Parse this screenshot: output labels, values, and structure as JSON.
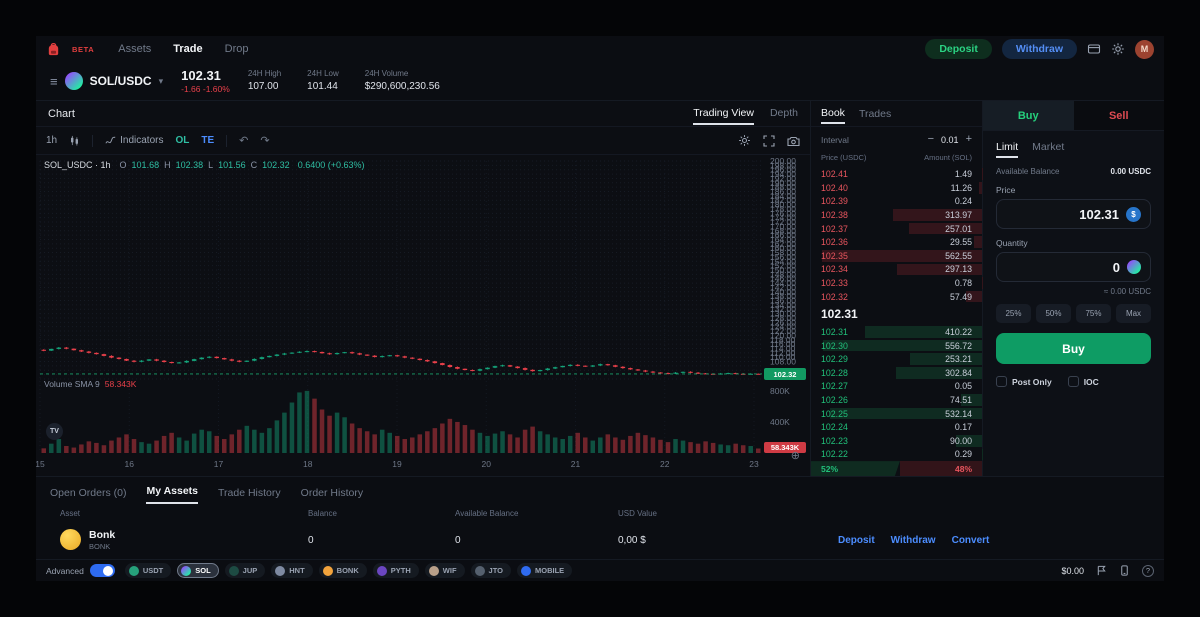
{
  "nav": {
    "beta": "BETA",
    "items": [
      {
        "label": "Assets",
        "active": false
      },
      {
        "label": "Trade",
        "active": true
      },
      {
        "label": "Drop",
        "active": false
      }
    ],
    "deposit": "Deposit",
    "withdraw": "Withdraw",
    "avatar_initial": "M"
  },
  "market": {
    "pair": "SOL/USDC",
    "price": "102.31",
    "change": "-1.66 -1.60%",
    "stats": [
      {
        "label": "24H High",
        "value": "107.00"
      },
      {
        "label": "24H Low",
        "value": "101.44"
      },
      {
        "label": "24H Volume",
        "value": "$290,600,230.56"
      }
    ]
  },
  "chart": {
    "panel_title": "Chart",
    "view_tabs": [
      {
        "label": "Trading View",
        "active": true
      },
      {
        "label": "Depth",
        "active": false
      }
    ],
    "toolbar": {
      "timeframe": "1h",
      "indicators": "Indicators",
      "ol": "OL",
      "te": "TE",
      "undo": "↶",
      "redo": "↷"
    },
    "legend": {
      "title": "SOL_USDC · 1h",
      "o_label": "O",
      "o": "101.68",
      "h_label": "H",
      "h": "102.38",
      "l_label": "L",
      "l": "101.56",
      "c_label": "C",
      "c": "102.32",
      "change": "0.6400 (+0.63%)"
    },
    "volume_legend": {
      "label": "Volume SMA 9",
      "value": "58.343K"
    },
    "watermark": "TV",
    "target_glyph": "⊕",
    "chart_data": {
      "type": "candlestick",
      "symbol": "SOL_USDC",
      "interval": "1h",
      "ylim": [
        100,
        200.001
      ],
      "y_step": 2,
      "x_ticks": [
        "15",
        "16",
        "17",
        "18",
        "19",
        "20",
        "21",
        "22",
        "23"
      ],
      "vol_ticks": [
        {
          "label": "800K",
          "value": 800
        },
        {
          "label": "400K",
          "value": 400
        }
      ],
      "vol_max": 850,
      "last_price": 102.32,
      "last_price_label": "102.32",
      "last_volume_label": "58.343K",
      "closes": [
        113.0,
        113.8,
        114.4,
        113.9,
        113.2,
        112.6,
        112.0,
        111.4,
        110.6,
        109.8,
        109.2,
        108.4,
        107.9,
        108.4,
        109.0,
        108.4,
        107.8,
        107.3,
        107.6,
        108.3,
        109.1,
        109.8,
        110.2,
        109.6,
        109.0,
        108.4,
        107.9,
        108.4,
        109.2,
        110.0,
        110.6,
        111.2,
        111.7,
        112.1,
        112.5,
        112.8,
        112.4,
        111.8,
        111.4,
        111.9,
        112.3,
        111.8,
        111.2,
        110.7,
        110.1,
        110.5,
        110.9,
        110.4,
        109.8,
        109.3,
        108.7,
        108.1,
        107.3,
        106.4,
        105.5,
        104.7,
        104.1,
        103.8,
        104.5,
        105.2,
        105.9,
        106.3,
        105.7,
        105.0,
        104.2,
        103.6,
        104.1,
        104.8,
        105.4,
        106.0,
        106.5,
        106.1,
        105.7,
        106.2,
        106.8,
        106.3,
        105.6,
        105.0,
        104.4,
        103.9,
        103.4,
        103.0,
        102.7,
        102.5,
        102.9,
        103.3,
        102.9,
        102.6,
        102.4,
        102.3,
        102.5,
        102.7,
        102.4,
        102.3,
        102.4,
        102.32
      ],
      "volumes_k": [
        60,
        120,
        180,
        90,
        70,
        110,
        150,
        130,
        100,
        160,
        200,
        240,
        180,
        140,
        120,
        160,
        220,
        260,
        200,
        160,
        250,
        300,
        280,
        220,
        180,
        240,
        300,
        350,
        300,
        260,
        320,
        420,
        520,
        650,
        780,
        800,
        700,
        560,
        480,
        520,
        460,
        380,
        320,
        280,
        240,
        300,
        260,
        220,
        180,
        200,
        240,
        280,
        320,
        380,
        440,
        400,
        360,
        300,
        260,
        220,
        250,
        280,
        240,
        200,
        300,
        340,
        280,
        240,
        200,
        180,
        220,
        260,
        200,
        160,
        200,
        240,
        200,
        170,
        220,
        260,
        230,
        200,
        170,
        140,
        180,
        160,
        140,
        120,
        150,
        130,
        110,
        100,
        120,
        100,
        90,
        58
      ]
    }
  },
  "book": {
    "tabs": [
      {
        "label": "Book",
        "active": true
      },
      {
        "label": "Trades",
        "active": false
      }
    ],
    "interval_label": "Interval",
    "interval_minus": "−",
    "interval_value": "0.01",
    "interval_plus": "+",
    "col_price": "Price (USDC)",
    "col_amount": "Amount (SOL)",
    "asks": [
      {
        "p": "102.41",
        "a": "1.49"
      },
      {
        "p": "102.40",
        "a": "11.26"
      },
      {
        "p": "102.39",
        "a": "0.24"
      },
      {
        "p": "102.38",
        "a": "313.97"
      },
      {
        "p": "102.37",
        "a": "257.01"
      },
      {
        "p": "102.36",
        "a": "29.55"
      },
      {
        "p": "102.35",
        "a": "562.55"
      },
      {
        "p": "102.34",
        "a": "297.13"
      },
      {
        "p": "102.33",
        "a": "0.78"
      },
      {
        "p": "102.32",
        "a": "57.49"
      }
    ],
    "mid_price": "102.31",
    "bids": [
      {
        "p": "102.31",
        "a": "410.22"
      },
      {
        "p": "102.30",
        "a": "556.72"
      },
      {
        "p": "102.29",
        "a": "253.21"
      },
      {
        "p": "102.28",
        "a": "302.84"
      },
      {
        "p": "102.27",
        "a": "0.05"
      },
      {
        "p": "102.26",
        "a": "74.51"
      },
      {
        "p": "102.25",
        "a": "532.14"
      },
      {
        "p": "102.24",
        "a": "0.17"
      },
      {
        "p": "102.23",
        "a": "90.00"
      },
      {
        "p": "102.22",
        "a": "0.29"
      }
    ],
    "buy_ratio": "52%",
    "sell_ratio": "48%"
  },
  "trade": {
    "side_tabs": [
      {
        "label": "Buy",
        "active": true
      },
      {
        "label": "Sell",
        "active": false
      }
    ],
    "type_tabs": [
      {
        "label": "Limit",
        "active": true
      },
      {
        "label": "Market",
        "active": false
      }
    ],
    "available_label": "Available Balance",
    "available_value": "0.00 USDC",
    "price_label": "Price",
    "price_value": "102.31",
    "quantity_label": "Quantity",
    "quantity_value": "0",
    "approx_value": "≈ 0.00 USDC",
    "percent_options": [
      "25%",
      "50%",
      "75%",
      "Max"
    ],
    "submit_label": "Buy",
    "checkboxes": [
      {
        "label": "Post Only",
        "checked": false
      },
      {
        "label": "IOC",
        "checked": false
      }
    ]
  },
  "positions": {
    "tabs": [
      {
        "label": "Open Orders (0)",
        "active": false
      },
      {
        "label": "My Assets",
        "active": true
      },
      {
        "label": "Trade History",
        "active": false
      },
      {
        "label": "Order History",
        "active": false
      }
    ],
    "columns": [
      "Asset",
      "Balance",
      "Available Balance",
      "USD Value"
    ],
    "rows": [
      {
        "name": "Bonk",
        "ticker": "BONK",
        "balance": "0",
        "available": "0",
        "usd": "0,00 $",
        "actions": [
          "Deposit",
          "Withdraw",
          "Convert"
        ]
      }
    ]
  },
  "footer": {
    "advanced_label": "Advanced",
    "tokens": [
      {
        "ticker": "USDT",
        "color": "#26a17b",
        "active": false
      },
      {
        "ticker": "SOL",
        "color": "#9945ff",
        "active": true
      },
      {
        "ticker": "JUP",
        "color": "#1d4b43",
        "active": false
      },
      {
        "ticker": "HNT",
        "color": "#7e8aa1",
        "active": false
      },
      {
        "ticker": "BONK",
        "color": "#f2a33c",
        "active": false
      },
      {
        "ticker": "PYTH",
        "color": "#6b46c1",
        "active": false
      },
      {
        "ticker": "WIF",
        "color": "#b9a089",
        "active": false
      },
      {
        "ticker": "JTO",
        "color": "#55606e",
        "active": false
      },
      {
        "ticker": "MOBILE",
        "color": "#2f6bf0",
        "active": false
      }
    ],
    "price_ticker": "$0.00",
    "help_glyph": "?"
  }
}
